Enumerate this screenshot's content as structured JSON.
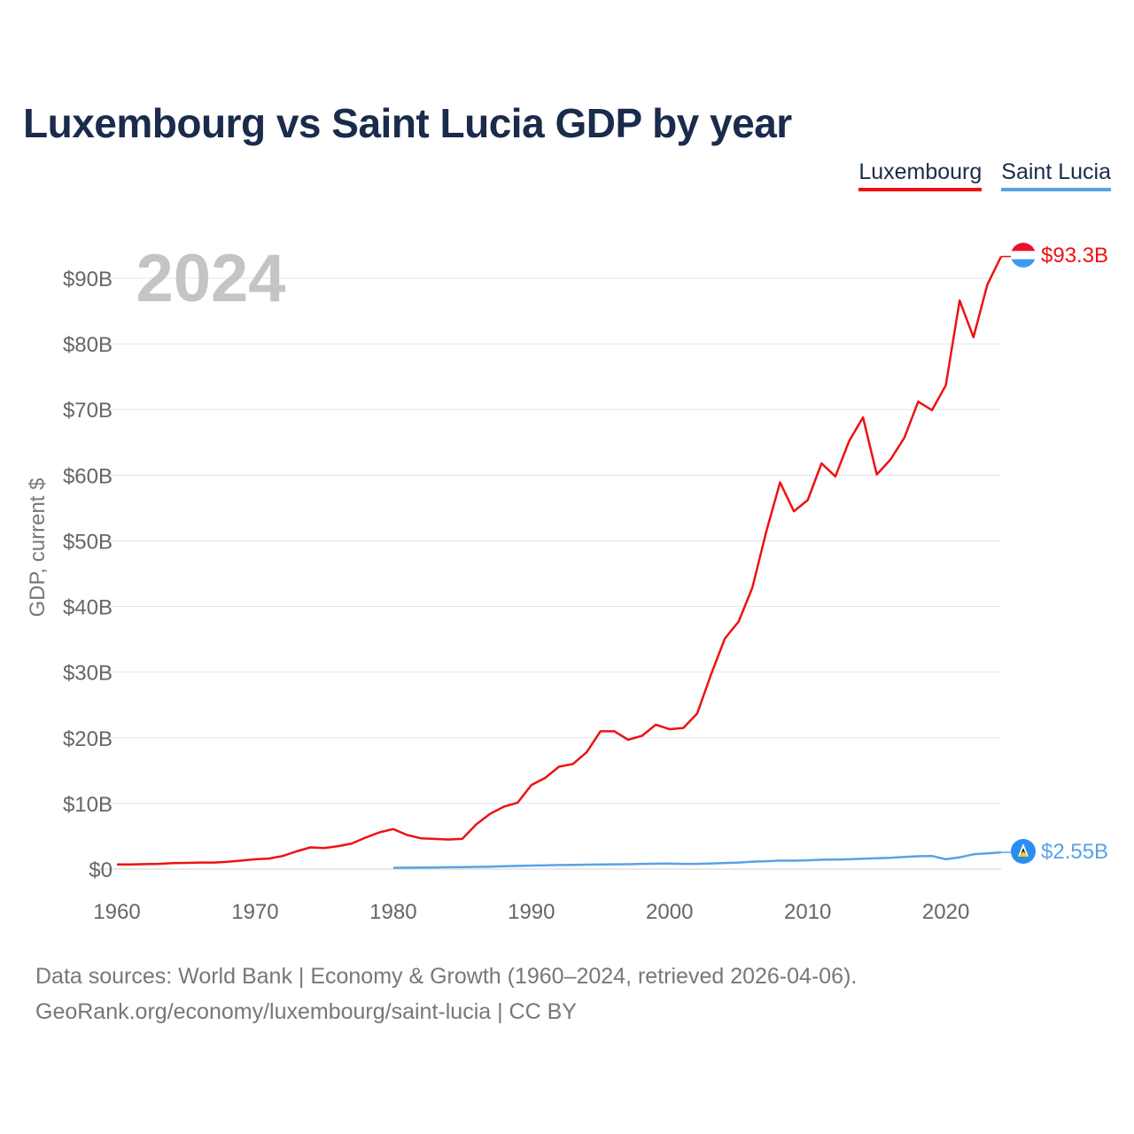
{
  "title": "Luxembourg vs Saint Lucia GDP by year",
  "year_label": "2024",
  "footer": {
    "line1": "Data sources: World Bank | Economy & Growth (1960–2024, retrieved 2026-04-06).",
    "line2": "GeoRank.org/economy/luxembourg/saint-lucia | CC BY"
  },
  "chart_data": {
    "type": "line",
    "title": "Luxembourg vs Saint Lucia GDP by year",
    "xlabel": "",
    "ylabel": "GDP, current $",
    "xlim": [
      1960,
      2024
    ],
    "ylim": [
      0,
      90
    ],
    "y_unit": "billion US$",
    "x_ticks": [
      1960,
      1970,
      1980,
      1990,
      2000,
      2010,
      2020
    ],
    "y_ticks": [
      0,
      10,
      20,
      30,
      40,
      50,
      60,
      70,
      80,
      90
    ],
    "y_tick_labels": [
      "$0",
      "$10B",
      "$20B",
      "$30B",
      "$40B",
      "$50B",
      "$60B",
      "$70B",
      "$80B",
      "$90B"
    ],
    "grid": true,
    "legend_position": "top-right",
    "series": [
      {
        "name": "Luxembourg",
        "color": "#ee1111",
        "end_label": "$93.3B",
        "x": [
          1960,
          1961,
          1962,
          1963,
          1964,
          1965,
          1966,
          1967,
          1968,
          1969,
          1970,
          1971,
          1972,
          1973,
          1974,
          1975,
          1976,
          1977,
          1978,
          1979,
          1980,
          1981,
          1982,
          1983,
          1984,
          1985,
          1986,
          1987,
          1988,
          1989,
          1990,
          1991,
          1992,
          1993,
          1994,
          1995,
          1996,
          1997,
          1998,
          1999,
          2000,
          2001,
          2002,
          2003,
          2004,
          2005,
          2006,
          2007,
          2008,
          2009,
          2010,
          2011,
          2012,
          2013,
          2014,
          2015,
          2016,
          2017,
          2018,
          2019,
          2020,
          2021,
          2022,
          2023,
          2024
        ],
        "values": [
          0.7,
          0.7,
          0.75,
          0.8,
          0.9,
          0.95,
          1.0,
          1.0,
          1.1,
          1.3,
          1.5,
          1.6,
          2.0,
          2.7,
          3.3,
          3.2,
          3.5,
          3.9,
          4.8,
          5.6,
          6.1,
          5.2,
          4.7,
          4.6,
          4.5,
          4.6,
          6.8,
          8.4,
          9.5,
          10.1,
          12.8,
          13.9,
          15.6,
          16.0,
          17.8,
          21.0,
          21.0,
          19.7,
          20.3,
          22.0,
          21.3,
          21.5,
          23.7,
          29.6,
          35.1,
          37.7,
          42.9,
          51.4,
          58.9,
          54.5,
          56.2,
          61.8,
          59.8,
          65.2,
          68.8,
          60.1,
          62.4,
          65.7,
          71.2,
          69.9,
          73.7,
          86.6,
          81.0,
          89.0,
          93.3
        ]
      },
      {
        "name": "Saint Lucia",
        "color": "#5aa2e6",
        "end_label": "$2.55B",
        "x": [
          1980,
          1981,
          1982,
          1983,
          1984,
          1985,
          1986,
          1987,
          1988,
          1989,
          1990,
          1991,
          1992,
          1993,
          1994,
          1995,
          1996,
          1997,
          1998,
          1999,
          2000,
          2001,
          2002,
          2003,
          2004,
          2005,
          2006,
          2007,
          2008,
          2009,
          2010,
          2011,
          2012,
          2013,
          2014,
          2015,
          2016,
          2017,
          2018,
          2019,
          2020,
          2021,
          2022,
          2023,
          2024
        ],
        "values": [
          0.2,
          0.22,
          0.23,
          0.25,
          0.28,
          0.3,
          0.34,
          0.38,
          0.43,
          0.48,
          0.54,
          0.58,
          0.62,
          0.64,
          0.67,
          0.71,
          0.73,
          0.74,
          0.79,
          0.82,
          0.84,
          0.8,
          0.8,
          0.87,
          0.93,
          1.0,
          1.13,
          1.2,
          1.3,
          1.28,
          1.33,
          1.43,
          1.45,
          1.5,
          1.58,
          1.65,
          1.73,
          1.85,
          1.95,
          2.0,
          1.5,
          1.8,
          2.25,
          2.4,
          2.55
        ]
      }
    ]
  }
}
